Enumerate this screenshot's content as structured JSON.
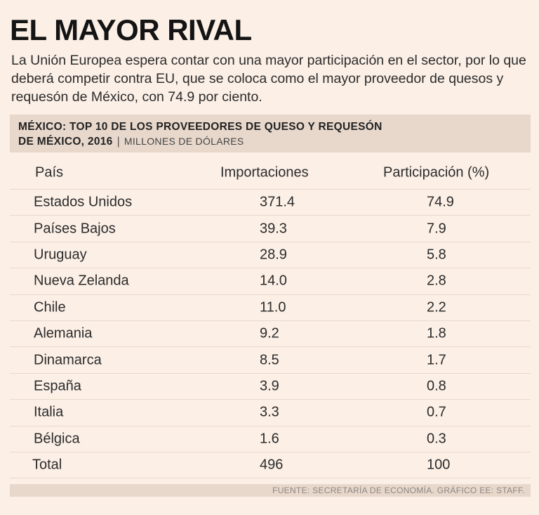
{
  "title": "EL MAYOR RIVAL",
  "intro": "La Unión Europea espera contar con una mayor participación en el sector, por lo que deberá competir contra EU, que se coloca como el mayor proveedor de quesos y requesón de México, con 74.9 por ciento.",
  "chart_data": {
    "type": "table",
    "title_line1": "MÉXICO: TOP 10 DE LOS PROVEEDORES DE QUESO Y REQUESÓN",
    "title_line2": "DE MÉXICO, 2016",
    "units": "MILLONES DE DÓLARES",
    "columns": [
      "País",
      "Importaciones",
      "Participación (%)"
    ],
    "rows": [
      {
        "country": "Estados Unidos",
        "imports": "371.4",
        "share": "74.9"
      },
      {
        "country": "Países Bajos",
        "imports": "39.3",
        "share": "7.9"
      },
      {
        "country": "Uruguay",
        "imports": "28.9",
        "share": "5.8"
      },
      {
        "country": "Nueva Zelanda",
        "imports": "14.0",
        "share": "2.8"
      },
      {
        "country": "Chile",
        "imports": "11.0",
        "share": "2.2"
      },
      {
        "country": "Alemania",
        "imports": "9.2",
        "share": "1.8"
      },
      {
        "country": "Dinamarca",
        "imports": "8.5",
        "share": "1.7"
      },
      {
        "country": "España",
        "imports": "3.9",
        "share": "0.8"
      },
      {
        "country": "Italia",
        "imports": "3.3",
        "share": "0.7"
      },
      {
        "country": "Bélgica",
        "imports": "1.6",
        "share": "0.3"
      }
    ],
    "total": {
      "country": "Total",
      "imports": "496",
      "share": "100"
    }
  },
  "source": "FUENTE: SECRETARÍA DE ECONOMÍA. GRÁFICO EE: STAFF."
}
